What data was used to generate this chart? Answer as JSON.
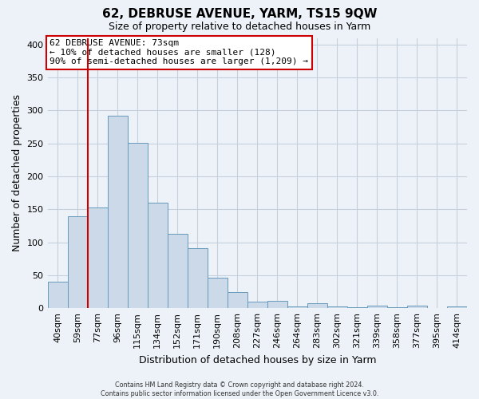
{
  "title": "62, DEBRUSE AVENUE, YARM, TS15 9QW",
  "subtitle": "Size of property relative to detached houses in Yarm",
  "xlabel": "Distribution of detached houses by size in Yarm",
  "ylabel": "Number of detached properties",
  "bar_labels": [
    "40sqm",
    "59sqm",
    "77sqm",
    "96sqm",
    "115sqm",
    "134sqm",
    "152sqm",
    "171sqm",
    "190sqm",
    "208sqm",
    "227sqm",
    "246sqm",
    "264sqm",
    "283sqm",
    "302sqm",
    "321sqm",
    "339sqm",
    "358sqm",
    "377sqm",
    "395sqm",
    "414sqm"
  ],
  "bar_values": [
    40,
    140,
    153,
    292,
    251,
    160,
    113,
    91,
    46,
    25,
    10,
    11,
    3,
    8,
    3,
    2,
    4,
    2,
    4,
    0,
    3
  ],
  "bar_color": "#ccd9e8",
  "bar_edge_color": "#6699bb",
  "ylim": [
    0,
    410
  ],
  "yticks": [
    0,
    50,
    100,
    150,
    200,
    250,
    300,
    350,
    400
  ],
  "vline_color": "#cc0000",
  "annotation_title": "62 DEBRUSE AVENUE: 73sqm",
  "annotation_line1": "← 10% of detached houses are smaller (128)",
  "annotation_line2": "90% of semi-detached houses are larger (1,209) →",
  "annotation_box_color": "#ffffff",
  "annotation_box_edge": "#cc0000",
  "footer1": "Contains HM Land Registry data © Crown copyright and database right 2024.",
  "footer2": "Contains public sector information licensed under the Open Government Licence v3.0.",
  "background_color": "#edf2f8",
  "grid_color": "#c5d0dc"
}
